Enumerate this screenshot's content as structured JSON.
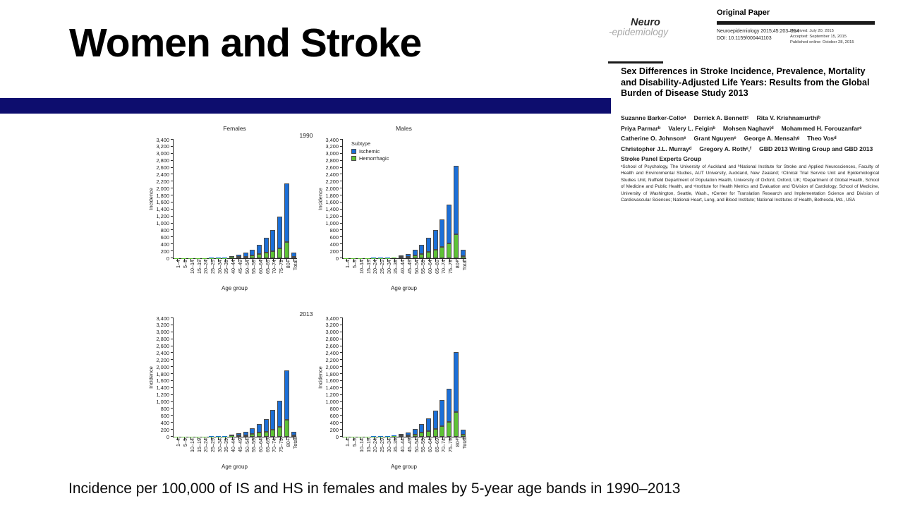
{
  "slide": {
    "title": "Women and Stroke",
    "caption": "Incidence per 100,000 of IS and HS in females and males by 5-year age bands in 1990–2013",
    "accent_color": "#0D0D6E"
  },
  "paper": {
    "logo_top": "Neuro",
    "logo_bottom": "-epidemiology",
    "section_label": "Original Paper",
    "citation": "Neuroepidemiology 2015;45:203–214",
    "doi": "DOI: 10.1159/000441103",
    "received": "Received: July 20, 2015",
    "accepted": "Accepted: September 15, 2015",
    "published": "Published online: October 28, 2015",
    "title": "Sex Differences in Stroke Incidence, Prevalence, Mortality and Disability-Adjusted Life Years: Results from the Global Burden of Disease Study 2013",
    "author_lines": [
      [
        "Suzanne Barker-Colloᵃ",
        "Derrick A. Bennettᶜ",
        "Rita V. Krishnamurthiᵇ"
      ],
      [
        "Priya Parmarᵇ",
        "Valery L. Feiginᵇ",
        "Mohsen Naghaviᵈ",
        "Mohammed H. Forouzanfarᵉ"
      ],
      [
        "Catherine O. Johnsonᵉ",
        "Grant Nguyenᵉ",
        "George A. Mensahᵍ",
        "Theo Vosᵈ"
      ],
      [
        "Christopher J.L. Murrayᵈ",
        "Gregory A. Rothᵉ,ᶠ",
        "GBD 2013 Writing Group and GBD 2013"
      ],
      [
        "Stroke Panel Experts Group"
      ]
    ],
    "affiliations": "ᵃSchool of Psychology, The University of Auckland and ᵇNational Institute for Stroke and Applied Neurosciences, Faculty of Health and Environmental Studies, AUT University, Auckland, New Zealand; ᶜClinical Trial Service Unit and Epidemiological Studies Unit, Nuffield Department of Population Health, University of Oxford, Oxford, UK; ᵈDepartment of Global Health, School of Medicine and Public Health, and ᵉInstitute for Health Metrics and Evaluation and ᶠDivision of Cardiology, School of Medicine, University of Washington, Seattle, Wash., ᵍCenter for Translation Research and Implementation Science and Division of Cardiovascular Sciences; National Heart, Lung, and Blood Institute; National Institutes of Health, Bethesda, Md., USA"
  },
  "chart_data": {
    "type": "bar",
    "stacked": true,
    "ylabel": "Incidence",
    "xlabel": "Age group",
    "ylim": [
      0,
      3400
    ],
    "ytick_step": 200,
    "grid": false,
    "legend": {
      "title": "Subtype",
      "position": "top-left inside Males 1990 panel",
      "items": [
        {
          "label": "Ischemic",
          "color": "#1B6FD8"
        },
        {
          "label": "Hemorrhagic",
          "color": "#5EC236"
        }
      ]
    },
    "categories": [
      "1–4",
      "5–9",
      "10–14",
      "15–19",
      "20–24",
      "25–29",
      "30–34",
      "35–39",
      "40–44",
      "45–49",
      "50–54",
      "55–59",
      "60–64",
      "65–69",
      "70–74",
      "75–79",
      "80+",
      "Total"
    ],
    "rows": [
      {
        "year": "1990",
        "panels": [
          {
            "title": "Females",
            "show_legend": false,
            "series": {
              "hemorrhagic": [
                2,
                2,
                2,
                3,
                4,
                5,
                6,
                10,
                15,
                30,
                50,
                80,
                120,
                155,
                205,
                290,
                470,
                45
              ],
              "ischemic": [
                3,
                3,
                4,
                5,
                6,
                7,
                10,
                15,
                30,
                60,
                110,
                165,
                270,
                425,
                615,
                910,
                1680,
                125
              ]
            }
          },
          {
            "title": "Males",
            "show_legend": true,
            "series": {
              "hemorrhagic": [
                3,
                3,
                3,
                4,
                5,
                6,
                8,
                12,
                25,
                45,
                75,
                125,
                185,
                235,
                330,
                430,
                680,
                70
              ],
              "ischemic": [
                3,
                3,
                4,
                5,
                7,
                9,
                10,
                18,
                35,
                80,
                160,
                255,
                395,
                565,
                780,
                1100,
                1970,
                165
              ]
            }
          }
        ]
      },
      {
        "year": "2013",
        "panels": [
          {
            "title": "",
            "show_legend": false,
            "series": {
              "hemorrhagic": [
                2,
                2,
                2,
                3,
                4,
                5,
                6,
                10,
                15,
                30,
                50,
                80,
                120,
                150,
                200,
                290,
                490,
                40
              ],
              "ischemic": [
                2,
                2,
                3,
                4,
                6,
                7,
                9,
                15,
                30,
                55,
                100,
                155,
                240,
                365,
                565,
                740,
                1410,
                105
              ]
            }
          },
          {
            "title": "",
            "show_legend": false,
            "series": {
              "hemorrhagic": [
                2,
                2,
                3,
                4,
                5,
                6,
                8,
                14,
                30,
                50,
                70,
                120,
                170,
                230,
                310,
                420,
                710,
                60
              ],
              "ischemic": [
                3,
                3,
                3,
                4,
                7,
                9,
                10,
                21,
                40,
                65,
                145,
                235,
                360,
                510,
                740,
                960,
                1720,
                145
              ]
            }
          }
        ]
      }
    ]
  }
}
